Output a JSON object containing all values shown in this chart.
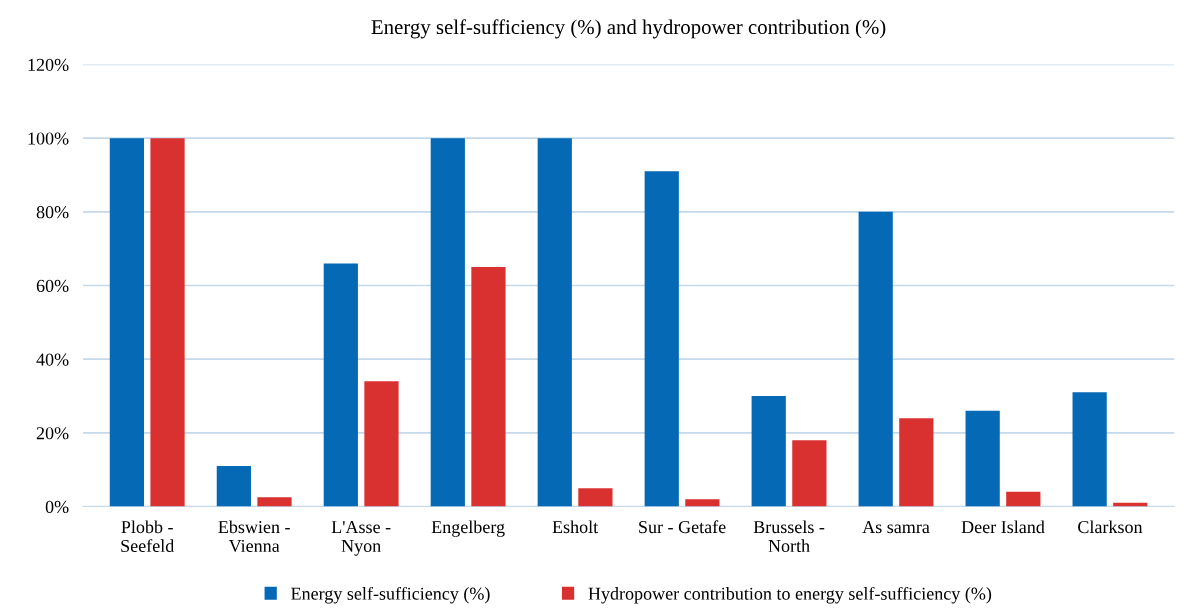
{
  "chart_data": {
    "type": "bar",
    "title": "Energy self-sufficiency (%) and hydropower contribution (%)",
    "categories": [
      "Plobb -\nSeefeld",
      "Ebswien -\nVienna",
      "L'Asse -\nNyon",
      "Engelberg",
      "Esholt",
      "Sur - Getafe",
      "Brussels -\nNorth",
      "As samra",
      "Deer Island",
      "Clarkson"
    ],
    "series": [
      {
        "name": "Energy self-sufficiency (%)",
        "color": "#0569b6",
        "values": [
          100,
          11,
          66,
          100,
          100,
          91,
          30,
          80,
          26,
          31
        ]
      },
      {
        "name": "Hydropower contribution to energy self-sufficiency (%)",
        "color": "#d93030",
        "values": [
          100,
          2.5,
          34,
          65,
          5,
          2,
          18,
          24,
          4,
          1
        ]
      }
    ],
    "ylim": [
      0,
      120
    ],
    "yticks": [
      {
        "value": 0,
        "label": "0%"
      },
      {
        "value": 20,
        "label": "20%"
      },
      {
        "value": 40,
        "label": "40%"
      },
      {
        "value": 60,
        "label": "60%"
      },
      {
        "value": 80,
        "label": "80%"
      },
      {
        "value": 100,
        "label": "100%"
      },
      {
        "value": 120,
        "label": "120%"
      }
    ],
    "grid": "y",
    "legend": "bottom"
  }
}
